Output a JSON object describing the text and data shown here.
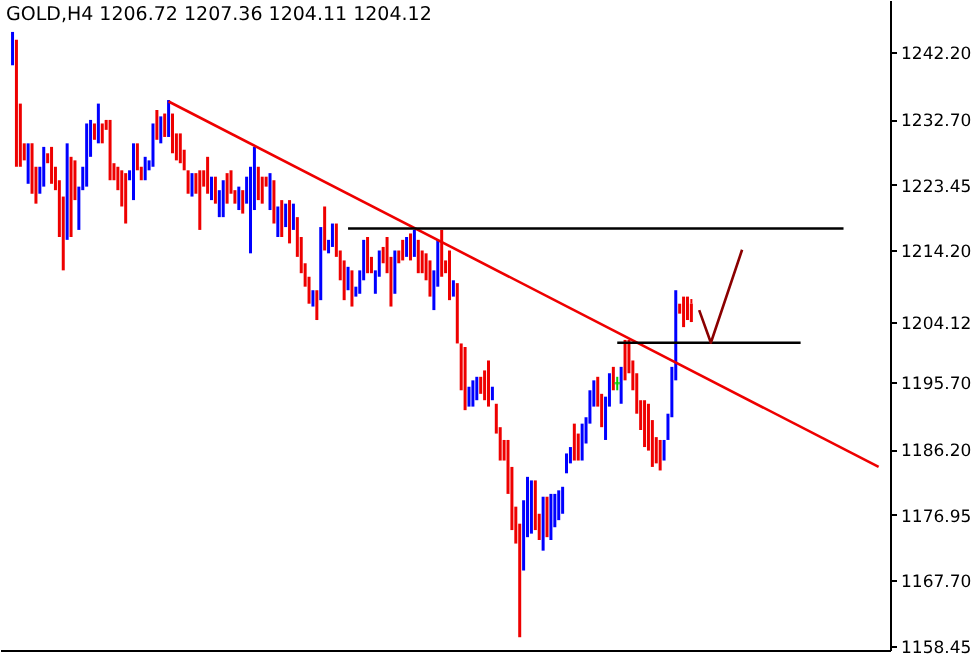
{
  "chart_data": {
    "type": "candlestick",
    "title": "GOLD,H4 1206.72 1207.36 1204.11 1204.12",
    "categories": [
      null,
      null,
      null,
      null,
      null,
      null,
      null,
      null,
      null,
      null,
      null,
      null,
      null,
      null,
      null,
      null,
      null,
      null,
      null,
      null,
      null,
      null,
      null,
      null,
      null,
      null,
      null,
      null,
      null,
      null,
      null,
      null,
      null,
      null,
      null,
      null,
      null,
      null,
      null,
      null,
      null,
      null,
      null,
      null,
      null,
      null,
      null,
      null,
      null,
      null,
      null,
      null,
      null,
      null,
      null,
      null,
      null,
      null,
      null,
      null,
      null,
      null,
      null,
      null,
      null,
      null,
      null,
      null,
      null,
      null,
      null,
      null,
      null,
      null,
      null,
      null,
      null,
      null,
      null,
      null,
      null,
      null,
      null,
      null,
      null,
      null,
      null,
      null,
      null,
      null,
      null,
      null,
      null,
      null,
      null,
      null,
      null,
      null,
      null,
      null,
      null,
      null,
      null,
      null,
      null,
      null,
      null,
      null,
      null,
      null,
      null,
      null,
      null,
      null,
      null,
      null,
      null,
      null,
      null,
      null,
      null,
      null,
      null,
      null,
      null,
      null,
      null,
      null,
      null,
      null,
      null,
      null,
      null,
      null,
      null,
      null,
      null,
      null,
      null,
      null,
      null,
      null,
      null,
      null,
      null,
      null,
      null,
      null,
      null,
      null,
      null,
      null,
      null,
      null,
      null,
      null,
      null,
      null,
      null,
      null,
      null,
      null,
      null,
      null,
      null,
      null,
      null,
      null,
      null,
      null,
      null,
      null,
      null,
      null,
      null,
      null,
      null,
      null,
      null,
      null,
      null,
      null,
      null,
      null,
      null,
      null,
      null,
      null,
      null,
      null,
      null,
      null,
      null,
      null,
      null,
      null,
      null,
      null,
      null,
      null,
      null,
      null,
      null,
      null,
      null,
      null,
      null,
      null,
      null,
      null,
      null,
      null,
      null,
      null,
      null,
      null,
      null,
      null,
      null,
      null,
      null,
      null,
      null
    ],
    "ohlc": [
      [
        1240.3,
        1245.0,
        1240.3,
        1245.0
      ],
      [
        1243.9,
        1243.9,
        1226.0,
        1226.0
      ],
      [
        1234.9,
        1234.9,
        1226.0,
        1226.0
      ],
      [
        1229.3,
        1229.3,
        1226.9,
        1226.9
      ],
      [
        1223.6,
        1229.3,
        1223.6,
        1229.3
      ],
      [
        1229.3,
        1229.3,
        1222.2,
        1222.2
      ],
      [
        1226.0,
        1226.0,
        1220.8,
        1220.8
      ],
      [
        1222.2,
        1226.0,
        1222.2,
        1226.0
      ],
      [
        1223.2,
        1228.8,
        1223.2,
        1228.8
      ],
      [
        1227.9,
        1227.9,
        1226.5,
        1226.5
      ],
      [
        1228.8,
        1228.8,
        1223.6,
        1223.6
      ],
      [
        1226.0,
        1226.0,
        1222.7,
        1222.7
      ],
      [
        1224.1,
        1224.1,
        1216.1,
        1216.1
      ],
      [
        1221.8,
        1221.8,
        1211.4,
        1211.4
      ],
      [
        1215.7,
        1229.3,
        1215.7,
        1229.3
      ],
      [
        1227.4,
        1227.4,
        1216.1,
        1216.1
      ],
      [
        1226.9,
        1226.9,
        1221.3,
        1221.3
      ],
      [
        1217.1,
        1223.2,
        1217.1,
        1223.2
      ],
      [
        1222.7,
        1226.0,
        1222.7,
        1226.0
      ],
      [
        1223.2,
        1232.1,
        1223.2,
        1232.1
      ],
      [
        1227.4,
        1232.6,
        1227.4,
        1232.6
      ],
      [
        1232.1,
        1232.1,
        1229.8,
        1229.8
      ],
      [
        1229.3,
        1234.9,
        1229.3,
        1234.9
      ],
      [
        1232.1,
        1232.1,
        1229.3,
        1229.3
      ],
      [
        1232.6,
        1232.6,
        1231.2,
        1231.2
      ],
      [
        1232.6,
        1232.6,
        1224.1,
        1224.1
      ],
      [
        1226.5,
        1226.5,
        1224.1,
        1224.1
      ],
      [
        1226.0,
        1226.0,
        1222.7,
        1222.7
      ],
      [
        1225.5,
        1225.5,
        1220.4,
        1220.4
      ],
      [
        1225.1,
        1225.1,
        1218.0,
        1218.0
      ],
      [
        1224.1,
        1225.5,
        1224.1,
        1225.5
      ],
      [
        1221.3,
        1229.3,
        1221.3,
        1229.3
      ],
      [
        1229.3,
        1229.3,
        1225.5,
        1225.5
      ],
      [
        1226.0,
        1226.0,
        1224.1,
        1224.1
      ],
      [
        1224.1,
        1227.4,
        1224.1,
        1227.4
      ],
      [
        1225.5,
        1226.9,
        1225.5,
        1226.9
      ],
      [
        1226.0,
        1232.1,
        1226.0,
        1232.1
      ],
      [
        1234.0,
        1234.0,
        1229.8,
        1229.8
      ],
      [
        1229.3,
        1233.1,
        1229.3,
        1233.1
      ],
      [
        1233.5,
        1233.5,
        1230.2,
        1230.2
      ],
      [
        1230.2,
        1235.4,
        1230.2,
        1235.4
      ],
      [
        1233.5,
        1233.5,
        1227.9,
        1227.9
      ],
      [
        1230.7,
        1230.7,
        1226.9,
        1226.9
      ],
      [
        1230.7,
        1230.7,
        1226.5,
        1226.5
      ],
      [
        1228.4,
        1228.4,
        1225.5,
        1225.5
      ],
      [
        1225.5,
        1225.5,
        1222.2,
        1222.2
      ],
      [
        1221.8,
        1225.1,
        1221.8,
        1225.1
      ],
      [
        1225.1,
        1225.1,
        1222.2,
        1222.2
      ],
      [
        1225.5,
        1225.5,
        1217.1,
        1217.1
      ],
      [
        1225.5,
        1225.5,
        1223.2,
        1223.2
      ],
      [
        1227.4,
        1227.4,
        1222.2,
        1222.2
      ],
      [
        1221.3,
        1224.6,
        1221.3,
        1224.6
      ],
      [
        1224.6,
        1224.6,
        1220.8,
        1220.8
      ],
      [
        1218.9,
        1222.7,
        1218.9,
        1222.7
      ],
      [
        1218.9,
        1224.1,
        1218.9,
        1224.1
      ],
      [
        1225.1,
        1225.1,
        1220.8,
        1220.8
      ],
      [
        1225.5,
        1225.5,
        1222.2,
        1222.2
      ],
      [
        1222.7,
        1222.7,
        1220.8,
        1220.8
      ],
      [
        1219.9,
        1223.2,
        1219.9,
        1223.2
      ],
      [
        1222.7,
        1222.7,
        1219.4,
        1219.4
      ],
      [
        1220.8,
        1224.6,
        1220.8,
        1224.6
      ],
      [
        1213.8,
        1226.0,
        1213.8,
        1226.0
      ],
      [
        1219.9,
        1228.8,
        1219.9,
        1228.8
      ],
      [
        1226.0,
        1226.0,
        1221.3,
        1221.3
      ],
      [
        1224.6,
        1224.6,
        1220.8,
        1220.8
      ],
      [
        1224.6,
        1224.6,
        1223.2,
        1223.2
      ],
      [
        1219.9,
        1225.1,
        1219.9,
        1225.1
      ],
      [
        1224.1,
        1224.1,
        1218.0,
        1218.0
      ],
      [
        1216.1,
        1220.4,
        1216.1,
        1220.4
      ],
      [
        1221.3,
        1221.3,
        1216.1,
        1216.1
      ],
      [
        1217.5,
        1220.8,
        1217.5,
        1220.8
      ],
      [
        1221.3,
        1221.3,
        1215.2,
        1215.2
      ],
      [
        1217.1,
        1220.8,
        1217.1,
        1220.8
      ],
      [
        1218.9,
        1218.9,
        1213.3,
        1213.3
      ],
      [
        1216.1,
        1216.1,
        1211.0,
        1211.0
      ],
      [
        1212.4,
        1212.4,
        1209.1,
        1209.1
      ],
      [
        1210.5,
        1210.5,
        1206.7,
        1206.7
      ],
      [
        1206.3,
        1208.6,
        1206.3,
        1208.6
      ],
      [
        1208.6,
        1208.6,
        1204.4,
        1204.4
      ],
      [
        1207.2,
        1217.5,
        1207.2,
        1217.5
      ],
      [
        1220.4,
        1220.4,
        1214.2,
        1214.2
      ],
      [
        1213.8,
        1215.7,
        1213.8,
        1215.7
      ],
      [
        1214.7,
        1218.0,
        1214.7,
        1218.0
      ],
      [
        1218.0,
        1218.0,
        1213.3,
        1213.3
      ],
      [
        1214.2,
        1214.2,
        1210.0,
        1210.0
      ],
      [
        1212.8,
        1212.8,
        1207.2,
        1207.2
      ],
      [
        1208.6,
        1211.9,
        1208.6,
        1211.9
      ],
      [
        1211.4,
        1211.4,
        1206.3,
        1206.3
      ],
      [
        1207.7,
        1209.1,
        1207.7,
        1209.1
      ],
      [
        1208.1,
        1211.4,
        1208.1,
        1211.4
      ],
      [
        1210.0,
        1215.7,
        1210.0,
        1215.7
      ],
      [
        1216.1,
        1216.1,
        1211.0,
        1211.0
      ],
      [
        1213.3,
        1213.3,
        1211.0,
        1211.0
      ],
      [
        1208.1,
        1211.4,
        1208.1,
        1211.4
      ],
      [
        1210.5,
        1214.2,
        1210.5,
        1214.2
      ],
      [
        1214.7,
        1214.7,
        1212.4,
        1212.4
      ],
      [
        1216.1,
        1216.1,
        1211.0,
        1211.0
      ],
      [
        1213.3,
        1213.3,
        1206.3,
        1206.3
      ],
      [
        1208.1,
        1214.2,
        1208.1,
        1214.2
      ],
      [
        1214.2,
        1214.2,
        1212.4,
        1212.4
      ],
      [
        1215.7,
        1215.7,
        1212.8,
        1212.8
      ],
      [
        1213.3,
        1216.1,
        1213.3,
        1216.1
      ],
      [
        1216.6,
        1216.6,
        1212.8,
        1212.8
      ],
      [
        1213.3,
        1217.1,
        1213.3,
        1217.1
      ],
      [
        1215.7,
        1215.7,
        1211.0,
        1211.0
      ],
      [
        1214.2,
        1214.2,
        1211.0,
        1211.0
      ],
      [
        1213.8,
        1213.8,
        1210.0,
        1210.0
      ],
      [
        1212.8,
        1212.8,
        1207.7,
        1207.7
      ],
      [
        1205.8,
        1211.4,
        1205.8,
        1211.4
      ],
      [
        1209.1,
        1215.7,
        1209.1,
        1215.7
      ],
      [
        1217.1,
        1217.1,
        1210.5,
        1210.5
      ],
      [
        1212.8,
        1212.8,
        1211.0,
        1211.0
      ],
      [
        1214.2,
        1214.2,
        1207.2,
        1207.2
      ],
      [
        1207.7,
        1210.0,
        1207.7,
        1210.0
      ],
      [
        1209.6,
        1209.6,
        1201.1,
        1201.1
      ],
      [
        1201.1,
        1201.1,
        1194.5,
        1194.5
      ],
      [
        1200.6,
        1200.6,
        1191.7,
        1191.7
      ],
      [
        1192.2,
        1195.0,
        1192.2,
        1195.0
      ],
      [
        1192.2,
        1195.9,
        1192.2,
        1195.9
      ],
      [
        1193.1,
        1196.4,
        1193.1,
        1196.4
      ],
      [
        1196.4,
        1196.4,
        1194.0,
        1194.0
      ],
      [
        1197.3,
        1197.3,
        1193.1,
        1193.1
      ],
      [
        1198.7,
        1198.7,
        1192.2,
        1192.2
      ],
      [
        1193.1,
        1195.0,
        1193.1,
        1195.0
      ],
      [
        1192.6,
        1192.6,
        1188.4,
        1188.4
      ],
      [
        1189.3,
        1189.3,
        1184.6,
        1184.6
      ],
      [
        1187.5,
        1187.5,
        1184.6,
        1184.6
      ],
      [
        1187.5,
        1187.5,
        1179.9,
        1179.9
      ],
      [
        1183.7,
        1183.7,
        1174.8,
        1174.8
      ],
      [
        1178.1,
        1178.1,
        1172.9,
        1172.9
      ],
      [
        1175.7,
        1175.7,
        1159.7,
        1159.7
      ],
      [
        1169.1,
        1179.0,
        1169.1,
        1179.0
      ],
      [
        1173.8,
        1182.3,
        1173.8,
        1182.3
      ],
      [
        1174.3,
        1181.8,
        1174.3,
        1181.8
      ],
      [
        1181.8,
        1181.8,
        1174.8,
        1174.8
      ],
      [
        1177.1,
        1177.1,
        1173.4,
        1173.4
      ],
      [
        1171.9,
        1179.5,
        1171.9,
        1179.5
      ],
      [
        1179.5,
        1179.5,
        1173.8,
        1173.8
      ],
      [
        1173.4,
        1179.9,
        1173.4,
        1179.9
      ],
      [
        1175.2,
        1179.9,
        1175.2,
        1179.9
      ],
      [
        1176.2,
        1180.4,
        1176.2,
        1180.4
      ],
      [
        1177.1,
        1180.9,
        1177.1,
        1180.9
      ],
      [
        1182.8,
        1185.6,
        1182.8,
        1185.6
      ],
      [
        1184.2,
        1186.5,
        1184.2,
        1186.5
      ],
      [
        1189.8,
        1189.8,
        1184.6,
        1184.6
      ],
      [
        1188.4,
        1188.4,
        1184.6,
        1184.6
      ],
      [
        1184.6,
        1189.8,
        1184.6,
        1189.8
      ],
      [
        1187.0,
        1190.7,
        1187.0,
        1190.7
      ],
      [
        1189.8,
        1194.5,
        1189.8,
        1194.5
      ],
      [
        1192.2,
        1195.9,
        1192.2,
        1195.9
      ],
      [
        1196.4,
        1196.4,
        1192.2,
        1192.2
      ],
      [
        1194.0,
        1194.0,
        1189.3,
        1189.3
      ],
      [
        1187.5,
        1193.6,
        1187.5,
        1193.6
      ],
      [
        1192.2,
        1196.9,
        1192.2,
        1196.9
      ],
      [
        1197.8,
        1197.8,
        1194.5,
        1194.5
      ],
      [
        1195.5,
        1196.4,
        1194.5,
        1195.5
      ],
      [
        1192.6,
        1197.8,
        1192.6,
        1197.8
      ],
      [
        1201.6,
        1201.6,
        1195.9,
        1195.9
      ],
      [
        1201.6,
        1201.6,
        1196.9,
        1196.9
      ],
      [
        1198.7,
        1198.7,
        1194.5,
        1194.5
      ],
      [
        1196.9,
        1196.9,
        1191.2,
        1191.2
      ],
      [
        1193.1,
        1193.1,
        1188.9,
        1188.9
      ],
      [
        1193.1,
        1193.1,
        1186.5,
        1186.5
      ],
      [
        1192.6,
        1192.6,
        1186.0,
        1186.0
      ],
      [
        1190.3,
        1190.3,
        1183.7,
        1183.7
      ],
      [
        1187.9,
        1187.9,
        1184.2,
        1184.2
      ],
      [
        1187.5,
        1187.5,
        1183.2,
        1183.2
      ],
      [
        1184.6,
        1187.5,
        1184.6,
        1187.5
      ],
      [
        1187.5,
        1191.2,
        1187.5,
        1191.2
      ],
      [
        1190.7,
        1197.8,
        1190.7,
        1197.8
      ],
      [
        1195.9,
        1208.6,
        1195.9,
        1208.6
      ],
      [
        1206.7,
        1206.7,
        1205.3,
        1205.3
      ],
      [
        1207.7,
        1207.7,
        1203.4,
        1203.4
      ],
      [
        1207.7,
        1207.7,
        1204.4,
        1204.4
      ],
      [
        1206.72,
        1207.36,
        1204.11,
        1204.12
      ],
      null,
      null,
      null,
      null,
      null,
      null,
      null,
      null,
      null,
      null,
      null,
      null,
      null,
      null,
      null,
      null,
      null,
      null,
      null,
      null,
      null,
      null,
      null,
      null,
      null,
      null,
      null,
      null,
      null,
      null,
      null,
      null,
      null,
      null,
      null,
      null,
      null,
      null,
      null,
      null,
      null,
      null,
      null,
      null,
      null,
      null,
      null,
      null
    ],
    "colors": [
      "#0000ff",
      "#ee0000",
      "#ee0000",
      "#ee0000",
      "#0000ff",
      "#ee0000",
      "#ee0000",
      "#0000ff",
      "#0000ff",
      "#ee0000",
      "#ee0000",
      "#ee0000",
      "#ee0000",
      "#ee0000",
      "#0000ff",
      "#ee0000",
      "#ee0000",
      "#0000ff",
      "#0000ff",
      "#0000ff",
      "#0000ff",
      "#ee0000",
      "#0000ff",
      "#ee0000",
      "#ee0000",
      "#ee0000",
      "#ee0000",
      "#ee0000",
      "#ee0000",
      "#ee0000",
      "#0000ff",
      "#0000ff",
      "#ee0000",
      "#ee0000",
      "#0000ff",
      "#0000ff",
      "#0000ff",
      "#ee0000",
      "#0000ff",
      "#ee0000",
      "#0000ff",
      "#ee0000",
      "#ee0000",
      "#ee0000",
      "#ee0000",
      "#ee0000",
      "#0000ff",
      "#ee0000",
      "#ee0000",
      "#ee0000",
      "#ee0000",
      "#0000ff",
      "#ee0000",
      "#0000ff",
      "#0000ff",
      "#ee0000",
      "#ee0000",
      "#ee0000",
      "#0000ff",
      "#ee0000",
      "#0000ff",
      "#0000ff",
      "#0000ff",
      "#ee0000",
      "#ee0000",
      "#ee0000",
      "#0000ff",
      "#ee0000",
      "#0000ff",
      "#ee0000",
      "#0000ff",
      "#ee0000",
      "#0000ff",
      "#ee0000",
      "#ee0000",
      "#ee0000",
      "#ee0000",
      "#0000ff",
      "#ee0000",
      "#0000ff",
      "#ee0000",
      "#0000ff",
      "#0000ff",
      "#ee0000",
      "#ee0000",
      "#ee0000",
      "#0000ff",
      "#ee0000",
      "#0000ff",
      "#0000ff",
      "#0000ff",
      "#ee0000",
      "#ee0000",
      "#0000ff",
      "#0000ff",
      "#ee0000",
      "#ee0000",
      "#ee0000",
      "#0000ff",
      "#ee0000",
      "#ee0000",
      "#0000ff",
      "#ee0000",
      "#0000ff",
      "#ee0000",
      "#ee0000",
      "#ee0000",
      "#ee0000",
      "#0000ff",
      "#0000ff",
      "#ee0000",
      "#ee0000",
      "#ee0000",
      "#0000ff",
      "#ee0000",
      "#ee0000",
      "#ee0000",
      "#0000ff",
      "#0000ff",
      "#0000ff",
      "#ee0000",
      "#ee0000",
      "#ee0000",
      "#0000ff",
      "#ee0000",
      "#ee0000",
      "#ee0000",
      "#ee0000",
      "#ee0000",
      "#ee0000",
      "#ee0000",
      "#0000ff",
      "#0000ff",
      "#0000ff",
      "#ee0000",
      "#ee0000",
      "#0000ff",
      "#ee0000",
      "#0000ff",
      "#0000ff",
      "#0000ff",
      "#0000ff",
      "#0000ff",
      "#0000ff",
      "#ee0000",
      "#ee0000",
      "#0000ff",
      "#0000ff",
      "#0000ff",
      "#0000ff",
      "#ee0000",
      "#ee0000",
      "#0000ff",
      "#0000ff",
      "#ee0000",
      "#00cc00",
      "#0000ff",
      "#ee0000",
      "#ee0000",
      "#ee0000",
      "#ee0000",
      "#ee0000",
      "#ee0000",
      "#ee0000",
      "#ee0000",
      "#ee0000",
      "#ee0000",
      "#0000ff",
      "#0000ff",
      "#0000ff",
      "#0000ff",
      "#ee0000",
      "#ee0000",
      "#ee0000",
      "#ee0000",
      null,
      null,
      null,
      null,
      null,
      null,
      null,
      null,
      null,
      null,
      null,
      null,
      null,
      null,
      null,
      null,
      null,
      null,
      null,
      null,
      null,
      null,
      null,
      null,
      null,
      null,
      null,
      null,
      null,
      null,
      null,
      null,
      null,
      null,
      null,
      null,
      null,
      null,
      null,
      null,
      null,
      null,
      null,
      null,
      null,
      null,
      null,
      null
    ],
    "series": [
      {
        "type": "line",
        "color": "#ee0000",
        "values": [
          null,
          null,
          null,
          null,
          null,
          null,
          null,
          null,
          null,
          null,
          null,
          null,
          null,
          null,
          null,
          null,
          null,
          null,
          null,
          null,
          null,
          null,
          null,
          null,
          null,
          null,
          null,
          null,
          null,
          null,
          null,
          null,
          null,
          null,
          null,
          null,
          null,
          null,
          null,
          null,
          1235.2,
          null,
          null,
          null,
          null,
          null,
          null,
          null,
          null,
          null,
          null,
          null,
          null,
          null,
          null,
          null,
          null,
          null,
          null,
          null,
          null,
          null,
          null,
          null,
          null,
          null,
          null,
          null,
          null,
          null,
          null,
          null,
          null,
          null,
          null,
          null,
          null,
          null,
          null,
          null,
          null,
          null,
          null,
          null,
          null,
          null,
          null,
          null,
          null,
          null,
          null,
          null,
          null,
          null,
          null,
          null,
          null,
          null,
          null,
          null,
          null,
          null,
          null,
          null,
          null,
          null,
          null,
          null,
          null,
          null,
          null,
          null,
          null,
          null,
          null,
          null,
          null,
          null,
          null,
          null,
          null,
          null,
          null,
          null,
          null,
          null,
          null,
          null,
          null,
          null,
          null,
          null,
          null,
          null,
          null,
          null,
          null,
          null,
          null,
          null,
          null,
          null,
          null,
          null,
          null,
          null,
          null,
          null,
          null,
          null,
          null,
          null,
          null,
          null,
          null,
          null,
          null,
          null,
          null,
          null,
          null,
          null,
          null,
          null,
          null,
          null,
          null,
          null,
          null,
          null,
          null,
          null,
          null,
          null,
          null,
          null,
          null,
          null,
          null,
          null,
          null,
          null,
          null,
          null,
          null,
          null,
          null,
          null,
          null,
          null,
          null,
          null,
          null,
          null,
          null,
          null,
          null,
          null,
          null,
          null,
          null,
          null,
          null,
          null,
          null,
          null,
          null,
          null,
          null,
          null,
          null,
          null,
          null,
          null,
          null,
          null,
          null,
          null,
          null,
          null,
          null,
          null,
          1183.7
        ]
      },
      {
        "type": "line",
        "color": "#000000",
        "values": [
          null,
          null,
          null,
          null,
          null,
          null,
          null,
          null,
          null,
          null,
          null,
          null,
          null,
          null,
          null,
          null,
          null,
          null,
          null,
          null,
          null,
          null,
          null,
          null,
          null,
          null,
          null,
          null,
          null,
          null,
          null,
          null,
          null,
          null,
          null,
          null,
          null,
          null,
          null,
          null,
          null,
          null,
          null,
          null,
          null,
          null,
          null,
          null,
          null,
          null,
          null,
          null,
          null,
          null,
          null,
          null,
          null,
          null,
          null,
          null,
          null,
          null,
          null,
          null,
          null,
          null,
          null,
          null,
          null,
          null,
          null,
          null,
          null,
          null,
          null,
          null,
          null,
          null,
          null,
          null,
          null,
          null,
          null,
          null,
          null,
          null,
          1217.3,
          null,
          null,
          null,
          null,
          null,
          null,
          null,
          null,
          null,
          null,
          null,
          null,
          null,
          null,
          null,
          null,
          null,
          null,
          null,
          null,
          null,
          null,
          null,
          null,
          null,
          null,
          null,
          null,
          null,
          null,
          null,
          null,
          null,
          null,
          null,
          null,
          null,
          null,
          null,
          null,
          null,
          null,
          null,
          null,
          null,
          null,
          null,
          null,
          null,
          null,
          null,
          null,
          null,
          null,
          null,
          null,
          null,
          null,
          null,
          null,
          null,
          null,
          null,
          null,
          null,
          null,
          null,
          null,
          null,
          null,
          null,
          null,
          null,
          null,
          null,
          null,
          null,
          null,
          null,
          null,
          null,
          null,
          null,
          null,
          null,
          null,
          null,
          null,
          null,
          null,
          null,
          null,
          null,
          null,
          null,
          null,
          null,
          null,
          null,
          null,
          null,
          null,
          null,
          null,
          null,
          null,
          null,
          null,
          null,
          null,
          null,
          null,
          null,
          null,
          null,
          null,
          null,
          null,
          null,
          null,
          null,
          null,
          null,
          null,
          null,
          null,
          1217.3,
          null,
          null,
          null,
          null,
          null,
          null,
          null,
          null,
          null
        ]
      },
      {
        "type": "line",
        "color": "#000000",
        "values": [
          null,
          null,
          null,
          null,
          null,
          null,
          null,
          null,
          null,
          null,
          null,
          null,
          null,
          null,
          null,
          null,
          null,
          null,
          null,
          null,
          null,
          null,
          null,
          null,
          null,
          null,
          null,
          null,
          null,
          null,
          null,
          null,
          null,
          null,
          null,
          null,
          null,
          null,
          null,
          null,
          null,
          null,
          null,
          null,
          null,
          null,
          null,
          null,
          null,
          null,
          null,
          null,
          null,
          null,
          null,
          null,
          null,
          null,
          null,
          null,
          null,
          null,
          null,
          null,
          null,
          null,
          null,
          null,
          null,
          null,
          null,
          null,
          null,
          null,
          null,
          null,
          null,
          null,
          null,
          null,
          null,
          null,
          null,
          null,
          null,
          null,
          null,
          null,
          null,
          null,
          null,
          null,
          null,
          null,
          null,
          null,
          null,
          null,
          null,
          null,
          null,
          null,
          null,
          null,
          null,
          null,
          null,
          null,
          null,
          null,
          null,
          null,
          null,
          null,
          null,
          null,
          null,
          null,
          null,
          null,
          null,
          null,
          null,
          null,
          null,
          null,
          null,
          null,
          null,
          null,
          null,
          null,
          null,
          null,
          null,
          null,
          null,
          null,
          null,
          null,
          null,
          null,
          null,
          null,
          null,
          null,
          null,
          null,
          null,
          null,
          null,
          null,
          null,
          null,
          null,
          1201.2,
          null,
          null,
          null,
          null,
          null,
          null,
          null,
          null,
          null,
          null,
          null,
          null,
          null,
          null,
          null,
          null,
          null,
          null,
          null,
          null,
          null,
          null,
          null,
          null,
          null,
          null,
          null,
          null,
          null,
          null,
          null,
          null,
          null,
          null,
          null,
          null,
          null,
          null,
          null,
          null,
          null,
          null,
          null,
          null,
          null,
          null,
          1201.2,
          null,
          null,
          null,
          null,
          null,
          null,
          null,
          null,
          null,
          null,
          null,
          null,
          null,
          null,
          null,
          null,
          null,
          null,
          null,
          null
        ]
      },
      {
        "type": "line",
        "color": "#8b0000",
        "values": [
          null,
          null,
          null,
          null,
          null,
          null,
          null,
          null,
          null,
          null,
          null,
          null,
          null,
          null,
          null,
          null,
          null,
          null,
          null,
          null,
          null,
          null,
          null,
          null,
          null,
          null,
          null,
          null,
          null,
          null,
          null,
          null,
          null,
          null,
          null,
          null,
          null,
          null,
          null,
          null,
          null,
          null,
          null,
          null,
          null,
          null,
          null,
          null,
          null,
          null,
          null,
          null,
          null,
          null,
          null,
          null,
          null,
          null,
          null,
          null,
          null,
          null,
          null,
          null,
          null,
          null,
          null,
          null,
          null,
          null,
          null,
          null,
          null,
          null,
          null,
          null,
          null,
          null,
          null,
          null,
          null,
          null,
          null,
          null,
          null,
          null,
          null,
          null,
          null,
          null,
          null,
          null,
          null,
          null,
          null,
          null,
          null,
          null,
          null,
          null,
          null,
          null,
          null,
          null,
          null,
          null,
          null,
          null,
          null,
          null,
          null,
          null,
          null,
          null,
          null,
          null,
          null,
          null,
          null,
          null,
          null,
          null,
          null,
          null,
          null,
          null,
          null,
          null,
          null,
          null,
          null,
          null,
          null,
          null,
          null,
          null,
          null,
          null,
          null,
          null,
          null,
          null,
          null,
          null,
          null,
          null,
          null,
          null,
          null,
          null,
          null,
          null,
          null,
          null,
          null,
          null,
          null,
          null,
          null,
          null,
          null,
          null,
          null,
          null,
          null,
          null,
          null,
          null,
          null,
          null,
          null,
          null,
          null,
          null,
          null,
          null,
          1205.8,
          null,
          null,
          1201.2,
          null,
          null,
          null,
          null,
          null,
          null,
          null,
          1214.3,
          null,
          null,
          null,
          null,
          null,
          null,
          null,
          null,
          null,
          null,
          null,
          null,
          null,
          null,
          null,
          null,
          null,
          null,
          null,
          null,
          null,
          null,
          null,
          null,
          null,
          null,
          null,
          null,
          null,
          null,
          null,
          null,
          null,
          null,
          null
        ]
      }
    ],
    "ylim": [
      1157.9,
      1249.5
    ],
    "yticks": [
      {
        "value": 1158.45,
        "label": "1158.45"
      },
      {
        "value": 1167.7,
        "label": "1167.70"
      },
      {
        "value": 1176.95,
        "label": "1176.95"
      },
      {
        "value": 1186.2,
        "label": "1186.20"
      },
      {
        "value": 1195.7,
        "label": "1195.70"
      },
      {
        "value": 1204.12,
        "label": "1204.12"
      },
      {
        "value": 1214.2,
        "label": "1214.20"
      },
      {
        "value": 1223.45,
        "label": "1223.45"
      },
      {
        "value": 1232.7,
        "label": "1232.70"
      },
      {
        "value": 1242.2,
        "label": "1242.20"
      }
    ],
    "tick_labels": "y",
    "grid": false,
    "line_style": "solid",
    "marker": "none"
  }
}
